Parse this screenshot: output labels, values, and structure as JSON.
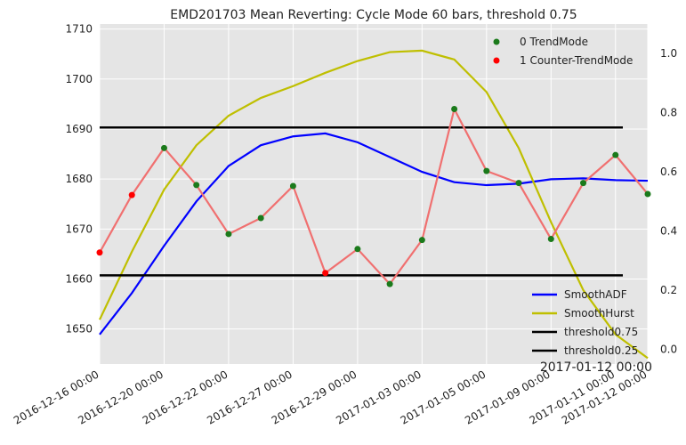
{
  "chart_data": {
    "type": "line",
    "title": "EMD201703 Mean Reverting: Cycle Mode 60 bars, threshold 0.75",
    "xlabel": "",
    "ylabel": "",
    "x_tick_labels": [
      "2016-12-16 00:00",
      "2016-12-20 00:00",
      "2016-12-22 00:00",
      "2016-12-27 00:00",
      "2016-12-29 00:00",
      "2017-01-03 00:00",
      "2017-01-05 00:00",
      "2017-01-09 00:00",
      "2017-01-11 00:00",
      "2017-01-12 00:00"
    ],
    "x_points": 18,
    "ylim_left": [
      1643,
      1711
    ],
    "yticks_left": [
      1650,
      1660,
      1670,
      1680,
      1690,
      1700,
      1710
    ],
    "ylim_right": [
      -0.05,
      1.1
    ],
    "yticks_right": [
      0.0,
      0.2,
      0.4,
      0.6,
      0.8,
      1.0
    ],
    "yticks_right_labels": [
      "0.0",
      "0.2",
      "0.4",
      "0.6",
      "0.8",
      "1.0"
    ],
    "price": [
      1665.3,
      1676.8,
      1686.2,
      1678.8,
      1669.0,
      1672.2,
      1678.6,
      1661.2,
      1666.0,
      1659.0,
      1667.8,
      1694.0,
      1681.6,
      1679.2,
      1668.0,
      1679.2,
      1684.8,
      1677.0
    ],
    "mode": [
      1,
      1,
      0,
      0,
      0,
      0,
      0,
      1,
      0,
      0,
      0,
      0,
      0,
      0,
      0,
      0,
      0,
      0
    ],
    "series": [
      {
        "name": "SmoothADF",
        "color": "#0000ff",
        "values": [
          0.05,
          0.19,
          0.35,
          0.5,
          0.62,
          0.69,
          0.72,
          0.73,
          0.7,
          0.65,
          0.6,
          0.565,
          0.555,
          0.56,
          0.575,
          0.578,
          0.572,
          0.57
        ]
      },
      {
        "name": "SmoothHurst",
        "color": "#bfbf00",
        "values": [
          0.1,
          0.33,
          0.54,
          0.69,
          0.79,
          0.85,
          0.89,
          0.935,
          0.975,
          1.005,
          1.01,
          0.98,
          0.87,
          0.68,
          0.43,
          0.2,
          0.05,
          -0.03
        ]
      },
      {
        "name": "threshold0.75",
        "color": "#000000",
        "values": [
          0.75
        ]
      },
      {
        "name": "threshold0.25",
        "color": "#000000",
        "values": [
          0.25
        ]
      }
    ],
    "scatter_legend": [
      {
        "name": "0 TrendMode",
        "color": "#1b7a1b"
      },
      {
        "name": "1 Counter-TrendMode",
        "color": "#ff0000"
      }
    ],
    "price_line_color": "#f07070",
    "grid": true,
    "legend_placement_top": "top-right",
    "legend_placement_bottom": "bottom-right",
    "annotation": "2017-01-12 00:00"
  }
}
